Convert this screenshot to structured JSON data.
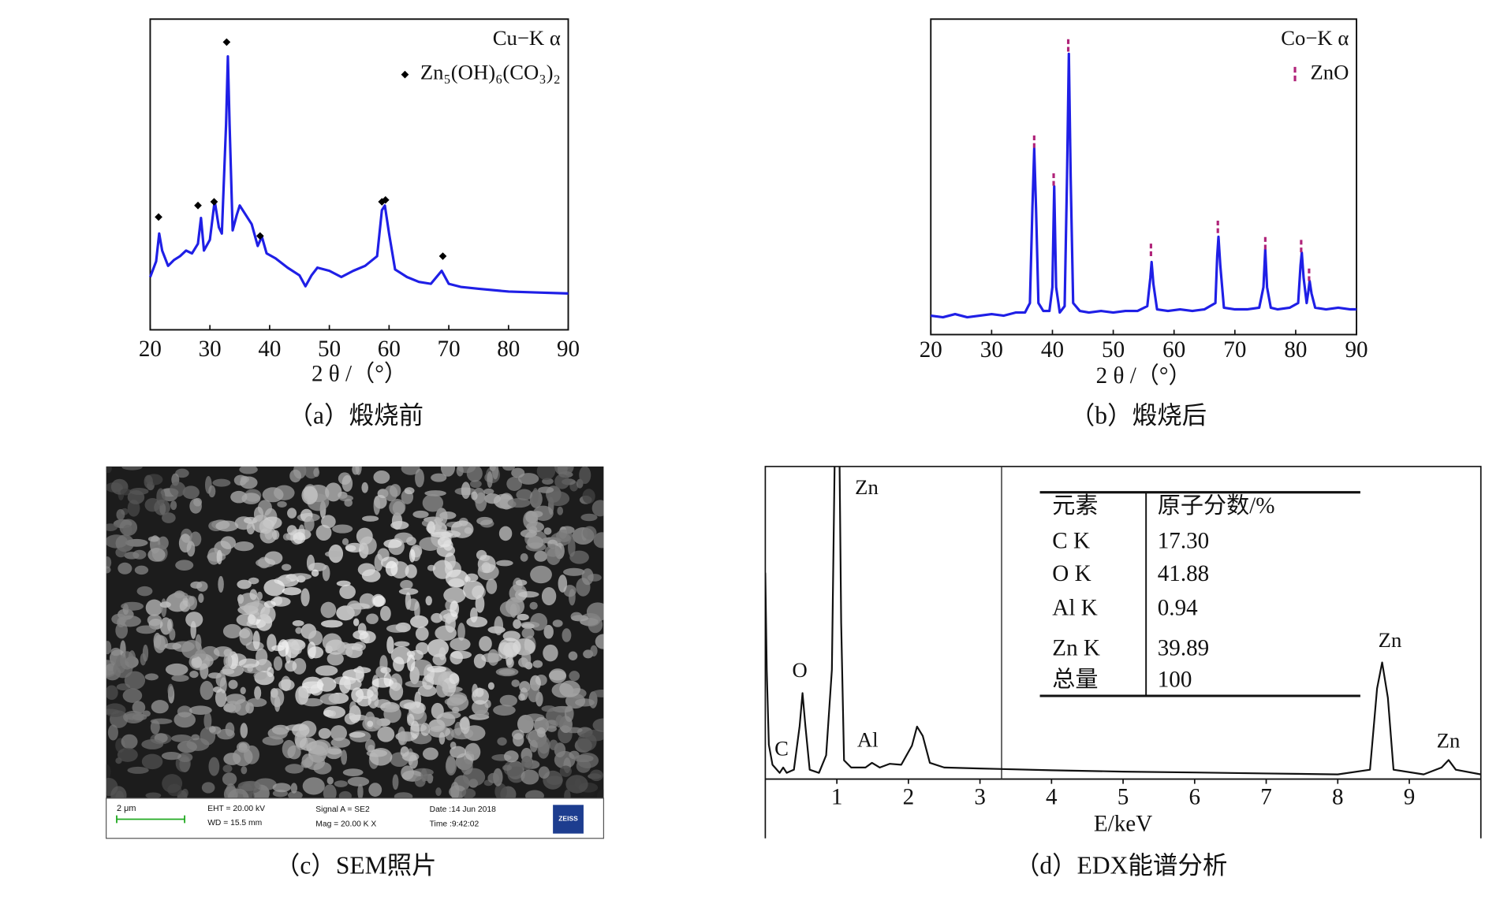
{
  "chart_data": [
    {
      "type": "line",
      "caption": "（a）煅烧前",
      "annotation": "Cu−K α",
      "xlabel": "2 θ /（°）",
      "xlim": [
        20,
        90
      ],
      "ylim": [
        0,
        100
      ],
      "xticks": [
        20,
        30,
        40,
        50,
        60,
        70,
        80,
        90
      ],
      "legend": "upper right",
      "series": [
        {
          "color": "#1f1fe6",
          "x": [
            20,
            21,
            21.5,
            22,
            23,
            24,
            25,
            26,
            27,
            28,
            28.5,
            29,
            30,
            30.8,
            31.5,
            32,
            32.7,
            33,
            33.3,
            33.8,
            34.5,
            35,
            36,
            37,
            38,
            38.7,
            39.5,
            41,
            43,
            45,
            46,
            47,
            48,
            50,
            52,
            54,
            56,
            58,
            58.8,
            59.3,
            60,
            61,
            63,
            65,
            67,
            68.8,
            70,
            72,
            75,
            80,
            85,
            90
          ],
          "values": [
            17,
            22,
            31,
            25.5,
            20.6,
            22.5,
            23.7,
            25.5,
            24.6,
            27.7,
            36,
            25.5,
            29,
            41.5,
            33,
            31,
            66,
            88,
            66,
            32,
            37,
            40,
            37,
            34,
            27,
            30,
            24.6,
            23,
            20,
            17.5,
            14,
            17.5,
            20,
            19,
            17,
            19,
            20.6,
            23.7,
            38.5,
            40,
            31,
            19.4,
            17,
            15.4,
            14.8,
            19,
            14.8,
            13.8,
            13.2,
            12.3,
            12,
            11.7
          ]
        },
        {
          "name": "Zn₅(OH)₆(CO₃)₂",
          "color": "#000000",
          "marker": "diamond",
          "x": [
            21.4,
            28,
            30.7,
            32.8,
            38.4,
            58.8,
            59.4,
            69
          ],
          "values": [
            36.3,
            40,
            41.2,
            92.6,
            30.2,
            41.2,
            41.8,
            23.7
          ]
        }
      ]
    },
    {
      "type": "line",
      "caption": "（b）煅烧后",
      "annotation": "Co−K α",
      "xlabel": "2 θ /（°）",
      "xlim": [
        20,
        90
      ],
      "ylim": [
        0,
        100
      ],
      "xticks": [
        20,
        30,
        40,
        50,
        60,
        70,
        80,
        90
      ],
      "legend": "upper right",
      "series": [
        {
          "color": "#1f1fe6",
          "x": [
            20,
            22,
            24,
            26,
            28,
            30,
            32,
            34,
            35.5,
            36.3,
            36.7,
            37,
            37.3,
            37.7,
            38.5,
            39.5,
            40,
            40.3,
            40.6,
            41.2,
            42,
            42.4,
            42.7,
            43,
            43.4,
            44.5,
            46,
            48,
            50,
            52,
            54,
            55.6,
            56.1,
            56.3,
            56.6,
            57.2,
            59,
            61,
            63,
            65,
            66.8,
            67.1,
            67.3,
            67.6,
            68.2,
            70,
            72,
            74,
            74.7,
            75,
            75.3,
            75.9,
            77,
            79,
            80.4,
            80.8,
            81,
            81.3,
            81.8,
            82.1,
            82.3,
            82.6,
            83.2,
            85,
            87,
            89,
            90
          ],
          "values": [
            6,
            5.5,
            6.5,
            5.5,
            6,
            6.5,
            6,
            7,
            7,
            10,
            40,
            59,
            40,
            10,
            7.5,
            7.5,
            15,
            47,
            15,
            7,
            9,
            50,
            89,
            50,
            10,
            7.5,
            7,
            7.5,
            7,
            7.5,
            7.5,
            9,
            18,
            23,
            16,
            8,
            7.5,
            8,
            7.5,
            8,
            10,
            25,
            31,
            22,
            8.5,
            8,
            8,
            8.5,
            15,
            27,
            15,
            8.5,
            8,
            8.5,
            10,
            22,
            26,
            18,
            10,
            14,
            17,
            13,
            8.5,
            8,
            8.5,
            8,
            8
          ]
        },
        {
          "name": "ZnO",
          "color": "#b0247a",
          "marker": "dash",
          "x": [
            37,
            40.2,
            42.6,
            56.2,
            67.2,
            75,
            80.9,
            82.2
          ],
          "values": [
            61,
            49,
            91.5,
            26.7,
            34,
            28.8,
            27.9,
            18.8
          ]
        }
      ]
    },
    {
      "type": "line",
      "caption": "（d）EDX能谱分析",
      "xlabel": "E/keV",
      "xlim": [
        0,
        10
      ],
      "ylim": [
        0,
        100
      ],
      "xticks": [
        1,
        2,
        3,
        4,
        5,
        6,
        7,
        8,
        9
      ],
      "series": [
        {
          "color": "#111111",
          "x": [
            0,
            0.02,
            0.05,
            0.1,
            0.2,
            0.25,
            0.3,
            0.4,
            0.48,
            0.52,
            0.56,
            0.62,
            0.75,
            0.85,
            0.93,
            0.98,
            1.03,
            1.06,
            1.1,
            1.2,
            1.4,
            1.49,
            1.6,
            1.74,
            1.9,
            2.05,
            2.12,
            2.2,
            2.3,
            2.5,
            3,
            4,
            5,
            6,
            7,
            8,
            8.45,
            8.55,
            8.62,
            8.7,
            8.78,
            9.2,
            9.45,
            9.55,
            9.65,
            10
          ],
          "values": [
            66,
            35,
            11,
            4.6,
            2,
            3.7,
            2,
            3,
            17,
            27.5,
            17,
            3,
            2,
            7.6,
            35,
            120,
            120,
            50,
            6,
            3.7,
            3.7,
            5.2,
            3.7,
            4.9,
            4.6,
            10.7,
            16.8,
            13.8,
            5.2,
            3.7,
            3.4,
            2.8,
            2.4,
            2.1,
            1.8,
            1.5,
            3,
            29,
            37.3,
            26,
            3,
            1.5,
            3.7,
            6.1,
            3,
            1.5
          ]
        }
      ],
      "peak_labels": [
        "Zn",
        "O",
        "C",
        "Al",
        "Zn",
        "Zn"
      ],
      "table": {
        "header": [
          "元素",
          "原子分数/%"
        ],
        "rows": [
          [
            "C K",
            "17.30"
          ],
          [
            "O K",
            "41.88"
          ],
          [
            "Al K",
            "0.94"
          ],
          [
            "Zn K",
            "39.89"
          ],
          [
            "总量",
            "100"
          ]
        ]
      }
    }
  ],
  "sem_photo": {
    "caption": "（c）SEM照片",
    "scale_bar": "2 μm",
    "info": [
      "EHT = 20.00 kV",
      "WD = 15.5 mm",
      "Signal A = SE2",
      "Mag = 20.00 K X",
      "Date :14 Jun 2018",
      "Time :9:42:02"
    ],
    "logo": "ZEISS"
  }
}
